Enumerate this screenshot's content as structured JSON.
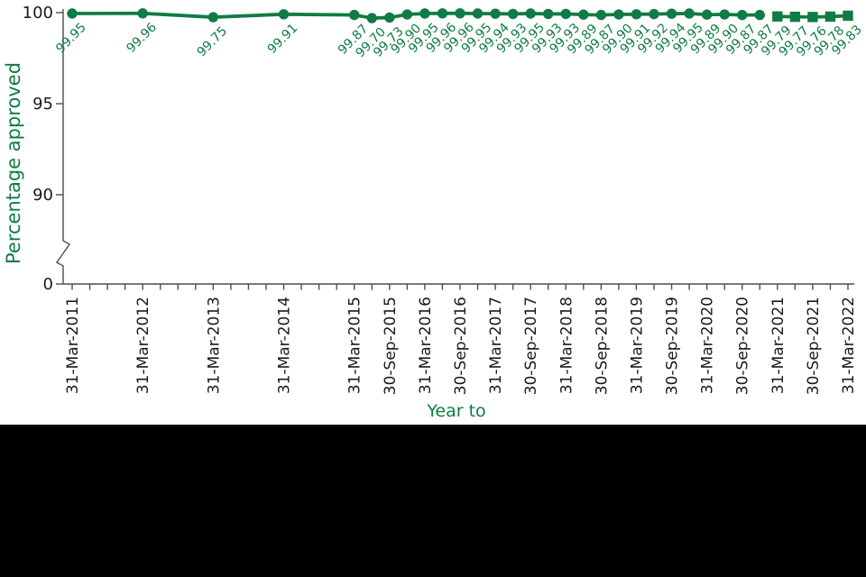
{
  "page": {
    "background": "#FFFFFF",
    "bottom_band_color": "#000000"
  },
  "chart_data": {
    "type": "line",
    "title": "",
    "xlabel": "Year to",
    "ylabel": "Percentage approved",
    "ylim": [
      0,
      100
    ],
    "y_ticks": [
      100,
      95,
      90,
      0
    ],
    "y_axis_break": true,
    "grid": false,
    "legend_position": "none",
    "x_axis_quarters": 45,
    "x_tick_labels": [
      {
        "q": 0,
        "label": "31-Mar-2011"
      },
      {
        "q": 4,
        "label": "31-Mar-2012"
      },
      {
        "q": 8,
        "label": "31-Mar-2013"
      },
      {
        "q": 12,
        "label": "31-Mar-2014"
      },
      {
        "q": 16,
        "label": "31-Mar-2015"
      },
      {
        "q": 18,
        "label": "30-Sep-2015"
      },
      {
        "q": 20,
        "label": "31-Mar-2016"
      },
      {
        "q": 22,
        "label": "30-Sep-2016"
      },
      {
        "q": 24,
        "label": "31-Mar-2017"
      },
      {
        "q": 26,
        "label": "30-Sep-2017"
      },
      {
        "q": 28,
        "label": "31-Mar-2018"
      },
      {
        "q": 30,
        "label": "30-Sep-2018"
      },
      {
        "q": 32,
        "label": "31-Mar-2019"
      },
      {
        "q": 34,
        "label": "30-Sep-2019"
      },
      {
        "q": 36,
        "label": "31-Mar-2020"
      },
      {
        "q": 38,
        "label": "30-Sep-2020"
      },
      {
        "q": 40,
        "label": "31-Mar-2021"
      },
      {
        "q": 42,
        "label": "30-Sep-2021"
      },
      {
        "q": 44,
        "label": "31-Mar-2022"
      }
    ],
    "series": [
      {
        "name": "approved-circles",
        "marker": "circle",
        "points": [
          {
            "q": 0,
            "v": 99.95,
            "label": "99.95"
          },
          {
            "q": 4,
            "v": 99.96,
            "label": "99.96"
          },
          {
            "q": 8,
            "v": 99.75,
            "label": "99.75"
          },
          {
            "q": 12,
            "v": 99.91,
            "label": "99.91"
          },
          {
            "q": 16,
            "v": 99.87,
            "label": "99.87"
          },
          {
            "q": 17,
            "v": 99.7,
            "label": "99.70"
          },
          {
            "q": 18,
            "v": 99.73,
            "label": "99.73"
          },
          {
            "q": 19,
            "v": 99.9,
            "label": "99.90"
          },
          {
            "q": 20,
            "v": 99.95,
            "label": "99.95"
          },
          {
            "q": 21,
            "v": 99.96,
            "label": "99.96"
          },
          {
            "q": 22,
            "v": 99.96,
            "label": "99.96"
          },
          {
            "q": 23,
            "v": 99.95,
            "label": "99.95"
          },
          {
            "q": 24,
            "v": 99.94,
            "label": "99.94"
          },
          {
            "q": 25,
            "v": 99.93,
            "label": "99.93"
          },
          {
            "q": 26,
            "v": 99.95,
            "label": "99.95"
          },
          {
            "q": 27,
            "v": 99.93,
            "label": "99.93"
          },
          {
            "q": 28,
            "v": 99.93,
            "label": "99.93"
          },
          {
            "q": 29,
            "v": 99.89,
            "label": "99.89"
          },
          {
            "q": 30,
            "v": 99.87,
            "label": "99.87"
          },
          {
            "q": 31,
            "v": 99.9,
            "label": "99.90"
          },
          {
            "q": 32,
            "v": 99.91,
            "label": "99.91"
          },
          {
            "q": 33,
            "v": 99.92,
            "label": "99.92"
          },
          {
            "q": 34,
            "v": 99.94,
            "label": "99.94"
          },
          {
            "q": 35,
            "v": 99.95,
            "label": "99.95"
          },
          {
            "q": 36,
            "v": 99.89,
            "label": "99.89"
          },
          {
            "q": 37,
            "v": 99.9,
            "label": "99.90"
          },
          {
            "q": 38,
            "v": 99.87,
            "label": "99.87"
          },
          {
            "q": 39,
            "v": 99.87,
            "label": "99.87"
          }
        ]
      },
      {
        "name": "approved-squares",
        "marker": "square",
        "points": [
          {
            "q": 40,
            "v": 99.79,
            "label": "99.79"
          },
          {
            "q": 41,
            "v": 99.77,
            "label": "99.77"
          },
          {
            "q": 42,
            "v": 99.76,
            "label": "99.76"
          },
          {
            "q": 43,
            "v": 99.78,
            "label": "99.78"
          },
          {
            "q": 44,
            "v": 99.83,
            "label": "99.83"
          }
        ]
      }
    ],
    "colors": {
      "line": "#107C44",
      "value_labels": "#107C44",
      "axis": "#4D4D4D",
      "tick_labels": "#1A1A1A",
      "axis_titles": "#107C44"
    }
  }
}
